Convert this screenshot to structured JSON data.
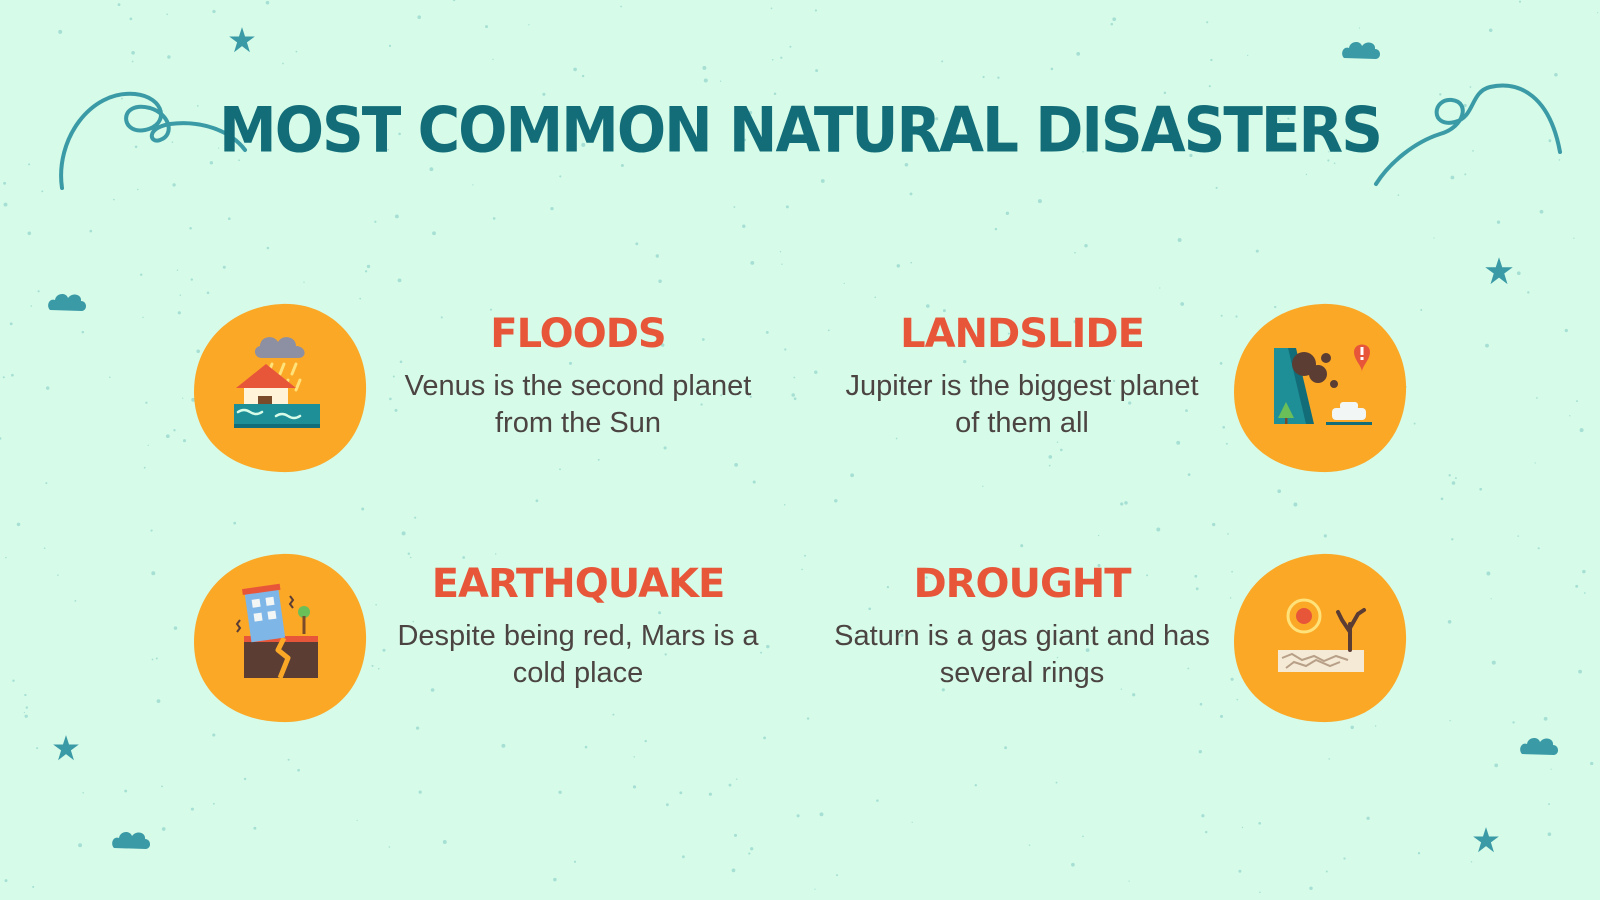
{
  "slide": {
    "title": "MOST COMMON NATURAL DISASTERS",
    "background_color": "#d6fbe8",
    "accent_color": "#136d79",
    "heading_color": "#e8563a",
    "blob_color": "#fba826"
  },
  "cards": [
    {
      "heading": "FLOODS",
      "description": "Venus is the second planet from the Sun",
      "icon": "flood-house-icon"
    },
    {
      "heading": "LANDSLIDE",
      "description": "Jupiter is the biggest planet of them all",
      "icon": "landslide-icon"
    },
    {
      "heading": "EARTHQUAKE",
      "description": "Despite being red, Mars is a cold place",
      "icon": "earthquake-building-icon"
    },
    {
      "heading": "DROUGHT",
      "description": "Saturn is a gas giant and has several rings",
      "icon": "drought-tree-icon"
    }
  ]
}
